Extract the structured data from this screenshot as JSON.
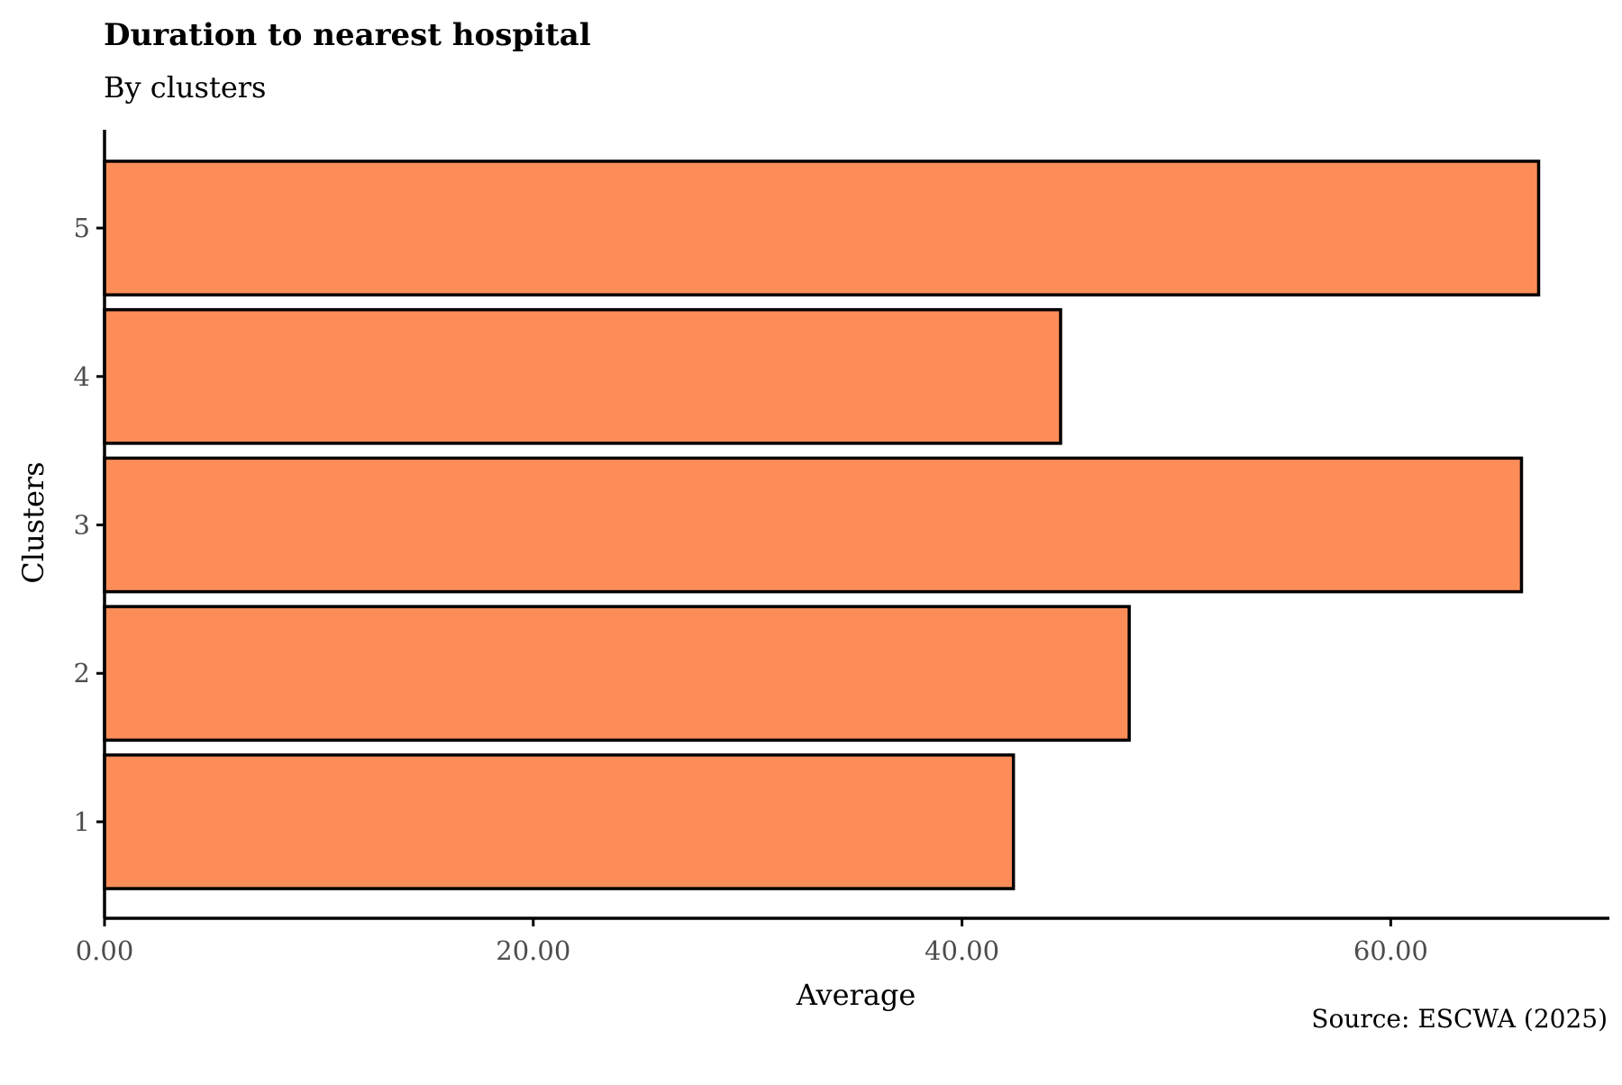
{
  "chart_data": {
    "type": "bar",
    "orientation": "horizontal",
    "title": "Duration to nearest hospital",
    "subtitle": "By clusters",
    "xlabel": "Average",
    "ylabel": "Clusters",
    "caption": "Source: ESCWA (2025)",
    "categories": [
      "1",
      "2",
      "3",
      "4",
      "5"
    ],
    "values": [
      42.4,
      47.8,
      66.1,
      44.6,
      66.9
    ],
    "xlim": [
      0,
      70.2
    ],
    "xticks": [
      0,
      20,
      40,
      60
    ],
    "xtick_labels": [
      "0.00",
      "20.00",
      "40.00",
      "60.00"
    ],
    "bar_color": "#FC8D59",
    "bar_outline": "#000000",
    "grid": false,
    "legend": "none"
  }
}
